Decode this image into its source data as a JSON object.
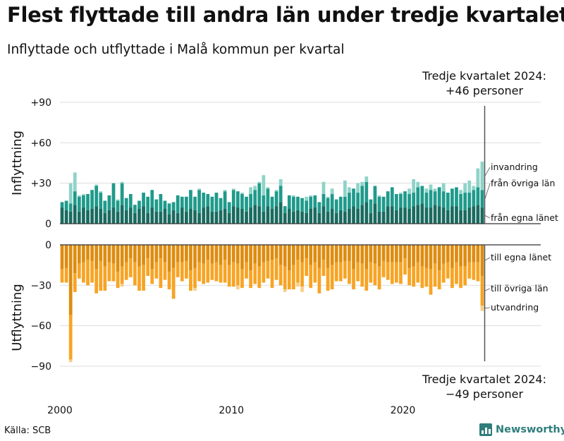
{
  "title": "Flest flyttade till andra län under tredje kvartalet",
  "subtitle": "Inflyttade och utflyttade i Malå kommun per kvartal",
  "source": "Källa: SCB",
  "brand": "Newsworthy",
  "colors": {
    "in_own": "#1a6a5f",
    "in_other": "#1f9a8b",
    "in_immigration": "#8ed3c8",
    "out_own": "#de8c10",
    "out_other": "#f7a424",
    "out_emigration": "#f8cf8d",
    "axis": "#333333",
    "grid": "#dddddd"
  },
  "chart_data": {
    "type": "bar",
    "stacked": true,
    "x_unit": "quarter",
    "x_start": "2000-Q1",
    "x_end": "2024-Q3",
    "xticks": [
      "2000",
      "2010",
      "2020"
    ],
    "panels": [
      {
        "id": "in",
        "ylabel": "Inflyttning",
        "ylim": [
          0,
          90
        ],
        "ytick_labels": [
          "0",
          "+30",
          "+60",
          "+90"
        ],
        "annotation": [
          "Tredje kvartalet 2024:",
          "+46 personer"
        ],
        "series": [
          {
            "name": "från egna länet",
            "values": [
              12,
              10,
              9,
              14,
              9,
              12,
              10,
              11,
              13,
              11,
              8,
              10,
              12,
              9,
              14,
              10,
              12,
              8,
              11,
              13,
              8,
              12,
              9,
              9,
              11,
              7,
              10,
              8,
              12,
              9,
              11,
              10,
              8,
              12,
              13,
              9,
              9,
              10,
              11,
              8,
              13,
              12,
              11,
              9,
              12,
              14,
              13,
              9,
              13,
              11,
              13,
              16,
              8,
              11,
              9,
              10,
              9,
              8,
              11,
              12,
              8,
              13,
              9,
              11,
              8,
              10,
              9,
              11,
              13,
              11,
              14,
              16,
              8,
              15,
              9,
              9,
              13,
              13,
              10,
              12,
              12,
              11,
              13,
              14,
              15,
              12,
              12,
              14,
              13,
              12,
              10,
              13,
              13,
              10,
              10,
              12,
              13,
              14,
              12
            ]
          },
          {
            "name": "från övriga län",
            "values": [
              4,
              7,
              6,
              10,
              11,
              9,
              12,
              14,
              15,
              12,
              9,
              11,
              18,
              8,
              16,
              9,
              10,
              6,
              6,
              10,
              12,
              13,
              9,
              13,
              6,
              8,
              6,
              13,
              8,
              11,
              14,
              10,
              17,
              11,
              9,
              11,
              14,
              9,
              13,
              8,
              12,
              12,
              11,
              11,
              10,
              11,
              17,
              12,
              13,
              9,
              11,
              12,
              5,
              10,
              11,
              10,
              10,
              9,
              9,
              9,
              8,
              9,
              10,
              11,
              10,
              10,
              11,
              12,
              13,
              12,
              14,
              15,
              10,
              13,
              11,
              11,
              11,
              14,
              12,
              10,
              12,
              11,
              10,
              13,
              13,
              11,
              13,
              10,
              14,
              12,
              13,
              13,
              14,
              12,
              13,
              11,
              12,
              13,
              13
            ]
          },
          {
            "name": "invandring",
            "values": [
              0,
              0,
              15,
              14,
              1,
              1,
              0,
              0,
              1,
              1,
              0,
              0,
              0,
              1,
              1,
              0,
              0,
              0,
              0,
              0,
              0,
              0,
              0,
              0,
              0,
              0,
              0,
              0,
              0,
              0,
              0,
              0,
              1,
              0,
              0,
              0,
              0,
              0,
              1,
              0,
              1,
              0,
              1,
              0,
              5,
              3,
              1,
              15,
              1,
              0,
              1,
              5,
              0,
              0,
              1,
              0,
              0,
              3,
              1,
              0,
              0,
              9,
              1,
              4,
              0,
              0,
              12,
              4,
              0,
              7,
              3,
              4,
              0,
              0,
              1,
              0,
              0,
              0,
              0,
              1,
              0,
              4,
              10,
              4,
              0,
              3,
              4,
              2,
              0,
              6,
              0,
              0,
              0,
              3,
              7,
              9,
              3,
              14,
              21
            ]
          }
        ]
      },
      {
        "id": "out",
        "ylabel": "Utflyttning",
        "ylim": [
          -90,
          0
        ],
        "ytick_labels": [
          "0",
          "−30",
          "−60",
          "−90"
        ],
        "annotation": [
          "Tredje kvartalet 2024:",
          "−49 personer"
        ],
        "series": [
          {
            "name": "till egna länet",
            "values": [
              -18,
              -17,
              -52,
              -21,
              -14,
              -13,
              -11,
              -12,
              -18,
              -12,
              -16,
              -13,
              -14,
              -20,
              -16,
              -13,
              -10,
              -13,
              -16,
              -15,
              -10,
              -18,
              -13,
              -10,
              -13,
              -20,
              -17,
              -13,
              -13,
              -12,
              -19,
              -17,
              -13,
              -14,
              -11,
              -14,
              -13,
              -15,
              -11,
              -15,
              -13,
              -14,
              -18,
              -13,
              -19,
              -14,
              -16,
              -13,
              -12,
              -11,
              -10,
              -15,
              -16,
              -19,
              -15,
              -11,
              -13,
              -10,
              -15,
              -13,
              -17,
              -11,
              -17,
              -15,
              -13,
              -13,
              -12,
              -12,
              -18,
              -13,
              -14,
              -18,
              -13,
              -14,
              -16,
              -12,
              -13,
              -13,
              -13,
              -13,
              -10,
              -17,
              -16,
              -13,
              -16,
              -17,
              -18,
              -14,
              -19,
              -14,
              -13,
              -17,
              -13,
              -16,
              -16,
              -13,
              -13,
              -13,
              -23
            ]
          },
          {
            "name": "till övriga län",
            "values": [
              -10,
              -11,
              -33,
              -14,
              -11,
              -15,
              -19,
              -16,
              -18,
              -22,
              -18,
              -14,
              -13,
              -12,
              -13,
              -13,
              -14,
              -17,
              -18,
              -19,
              -13,
              -11,
              -12,
              -22,
              -13,
              -13,
              -23,
              -11,
              -14,
              -13,
              -15,
              -15,
              -14,
              -15,
              -17,
              -12,
              -14,
              -13,
              -17,
              -16,
              -18,
              -16,
              -14,
              -12,
              -13,
              -15,
              -16,
              -15,
              -13,
              -21,
              -16,
              -15,
              -17,
              -14,
              -18,
              -17,
              -18,
              -13,
              -17,
              -15,
              -19,
              -12,
              -17,
              -18,
              -14,
              -14,
              -13,
              -17,
              -15,
              -14,
              -17,
              -16,
              -15,
              -16,
              -17,
              -12,
              -13,
              -16,
              -15,
              -16,
              -12,
              -13,
              -15,
              -15,
              -16,
              -14,
              -19,
              -17,
              -14,
              -14,
              -12,
              -15,
              -16,
              -16,
              -14,
              -12,
              -13,
              -14,
              -22
            ]
          },
          {
            "name": "utvandring",
            "values": [
              0,
              0,
              -2,
              0,
              0,
              0,
              0,
              0,
              0,
              0,
              0,
              0,
              0,
              0,
              -2,
              0,
              0,
              0,
              0,
              0,
              0,
              0,
              0,
              0,
              0,
              0,
              0,
              0,
              0,
              0,
              0,
              -2,
              0,
              0,
              0,
              0,
              0,
              0,
              0,
              0,
              0,
              -3,
              0,
              0,
              0,
              0,
              0,
              0,
              0,
              0,
              0,
              0,
              -2,
              0,
              0,
              -3,
              -4,
              0,
              0,
              0,
              0,
              0,
              0,
              0,
              0,
              0,
              0,
              0,
              0,
              0,
              0,
              0,
              0,
              0,
              0,
              0,
              0,
              0,
              0,
              0,
              0,
              0,
              0,
              0,
              0,
              0,
              0,
              0,
              0,
              0,
              0,
              0,
              0,
              0,
              0,
              0,
              0,
              0,
              -4
            ]
          }
        ]
      }
    ]
  }
}
